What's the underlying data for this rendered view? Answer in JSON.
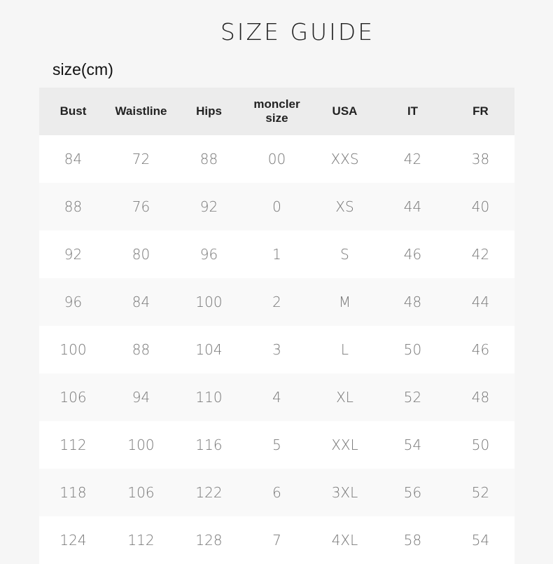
{
  "title": "SIZE GUIDE",
  "unit_label": "size(cm)",
  "table": {
    "headers": [
      "Bust",
      "Waistline",
      "Hips",
      "moncler size",
      "USA",
      "IT",
      "FR"
    ],
    "rows": [
      [
        "84",
        "72",
        "88",
        "00",
        "XXS",
        "42",
        "38"
      ],
      [
        "88",
        "76",
        "92",
        "0",
        "XS",
        "44",
        "40"
      ],
      [
        "92",
        "80",
        "96",
        "1",
        "S",
        "46",
        "42"
      ],
      [
        "96",
        "84",
        "100",
        "2",
        "M",
        "48",
        "44"
      ],
      [
        "100",
        "88",
        "104",
        "3",
        "L",
        "50",
        "46"
      ],
      [
        "106",
        "94",
        "110",
        "4",
        "XL",
        "52",
        "48"
      ],
      [
        "112",
        "100",
        "116",
        "5",
        "XXL",
        "54",
        "50"
      ],
      [
        "118",
        "106",
        "122",
        "6",
        "3XL",
        "56",
        "52"
      ],
      [
        "124",
        "112",
        "128",
        "7",
        "4XL",
        "58",
        "54"
      ]
    ]
  }
}
